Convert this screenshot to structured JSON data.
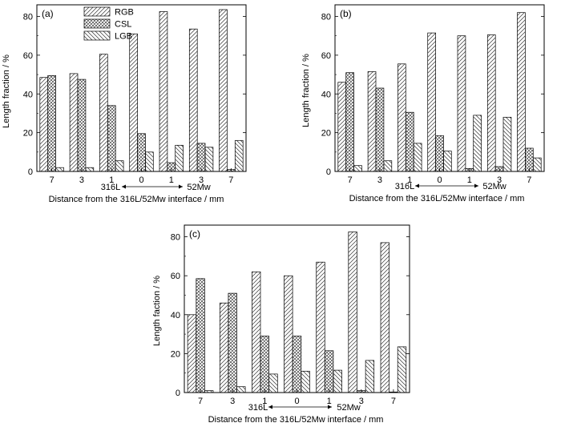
{
  "chart_data": [
    {
      "type": "bar",
      "panel_label": "(a)",
      "categories": [
        "7",
        "3",
        "1",
        "0",
        "1",
        "3",
        "7"
      ],
      "series": [
        {
          "name": "RGB",
          "values": [
            48.5,
            50.5,
            60.5,
            71,
            82.5,
            73.5,
            83.5
          ]
        },
        {
          "name": "CSL",
          "values": [
            49.5,
            47.5,
            34,
            19.5,
            4.5,
            14.5,
            1
          ]
        },
        {
          "name": "LGB",
          "values": [
            2,
            2,
            5.5,
            10,
            13.5,
            12.5,
            16
          ]
        }
      ],
      "ylabel": "Length fraction / %",
      "xlabel": "Distance from the 316L/52Mw interface / mm",
      "side_labels": {
        "left": "316L",
        "right": "52Mw"
      },
      "yticks": [
        0,
        20,
        40,
        60,
        80
      ],
      "ylim": [
        0,
        86
      ],
      "legend": "top-left",
      "grid": false
    },
    {
      "type": "bar",
      "panel_label": "(b)",
      "categories": [
        "7",
        "3",
        "1",
        "0",
        "1",
        "3",
        "7"
      ],
      "series": [
        {
          "name": "RGB",
          "values": [
            46,
            51.5,
            55.5,
            71.5,
            70,
            70.5,
            82
          ]
        },
        {
          "name": "CSL",
          "values": [
            51,
            43,
            30.5,
            18.5,
            1.5,
            2.5,
            12
          ]
        },
        {
          "name": "LGB",
          "values": [
            3,
            5.5,
            14.5,
            10.5,
            29,
            28,
            7
          ]
        }
      ],
      "ylabel": "Length fraction / %",
      "xlabel": "Distance from the 316L/52Mw interface / mm",
      "side_labels": {
        "left": "316L",
        "right": "52Mw"
      },
      "yticks": [
        0,
        20,
        40,
        60,
        80
      ],
      "ylim": [
        0,
        86
      ],
      "legend": "none",
      "grid": false
    },
    {
      "type": "bar",
      "panel_label": "(c)",
      "categories": [
        "7",
        "3",
        "1",
        "0",
        "1",
        "3",
        "7"
      ],
      "series": [
        {
          "name": "RGB",
          "values": [
            40,
            46,
            62,
            60,
            67,
            82.5,
            77
          ]
        },
        {
          "name": "CSL",
          "values": [
            58.5,
            51,
            29,
            29,
            21.5,
            1,
            0.3
          ]
        },
        {
          "name": "LGB",
          "values": [
            1,
            3,
            9.5,
            11,
            11.5,
            16.5,
            23.5
          ]
        }
      ],
      "ylabel": "Length faction / %",
      "xlabel": "Distance from the 316L/52Mw interface / mm",
      "side_labels": {
        "left": "316L",
        "right": "52Mw"
      },
      "yticks": [
        0,
        20,
        40,
        60,
        80
      ],
      "ylim": [
        0,
        86
      ],
      "legend": "none",
      "grid": false
    }
  ]
}
